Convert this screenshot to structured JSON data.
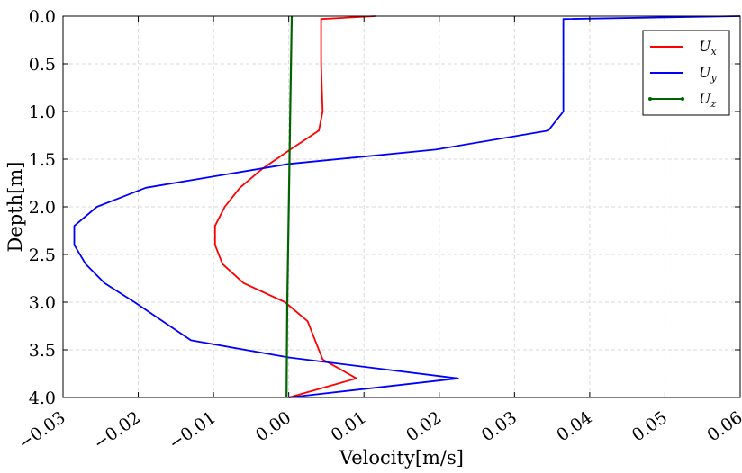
{
  "chart_data": {
    "type": "line",
    "xlabel": "Velocity[m/s]",
    "ylabel": "Depth[m]",
    "xlim": [
      -0.03,
      0.06
    ],
    "ylim": [
      4.0,
      0.0
    ],
    "y_inverted": true,
    "grid": true,
    "legend_position": "top-right",
    "x_ticks": [
      "−0.03",
      "−0.02",
      "−0.01",
      "0.00",
      "0.01",
      "0.02",
      "0.03",
      "0.04",
      "0.05",
      "0.06"
    ],
    "y_ticks": [
      "0.0",
      "0.5",
      "1.0",
      "1.5",
      "2.0",
      "2.5",
      "3.0",
      "3.5",
      "4.0"
    ],
    "series": [
      {
        "name": "U",
        "subscript": "x",
        "color": "#ff0000",
        "points": [
          [
            0.0115,
            0.0
          ],
          [
            0.0043,
            0.03
          ],
          [
            0.0043,
            0.5
          ],
          [
            0.0045,
            1.0
          ],
          [
            0.004,
            1.2
          ],
          [
            0.0002,
            1.4
          ],
          [
            -0.0035,
            1.6
          ],
          [
            -0.0065,
            1.8
          ],
          [
            -0.0085,
            2.0
          ],
          [
            -0.0098,
            2.2
          ],
          [
            -0.0098,
            2.4
          ],
          [
            -0.0088,
            2.6
          ],
          [
            -0.006,
            2.8
          ],
          [
            -0.0005,
            3.0
          ],
          [
            0.0025,
            3.2
          ],
          [
            0.0035,
            3.4
          ],
          [
            0.0045,
            3.6
          ],
          [
            0.009,
            3.8
          ],
          [
            0.0,
            4.0
          ]
        ]
      },
      {
        "name": "U",
        "subscript": "y",
        "color": "#0000ff",
        "points": [
          [
            0.06,
            0.0
          ],
          [
            0.0365,
            0.03
          ],
          [
            0.0365,
            0.5
          ],
          [
            0.0365,
            1.0
          ],
          [
            0.0345,
            1.2
          ],
          [
            0.0195,
            1.4
          ],
          [
            0.0,
            1.55
          ],
          [
            -0.019,
            1.8
          ],
          [
            -0.0255,
            2.0
          ],
          [
            -0.0285,
            2.2
          ],
          [
            -0.0285,
            2.4
          ],
          [
            -0.027,
            2.6
          ],
          [
            -0.0245,
            2.8
          ],
          [
            -0.0205,
            3.0
          ],
          [
            -0.013,
            3.4
          ],
          [
            0.0,
            3.58
          ],
          [
            0.0225,
            3.8
          ],
          [
            0.0,
            4.0
          ]
        ]
      },
      {
        "name": "U",
        "subscript": "z",
        "color": "#006400",
        "points": [
          [
            0.0004,
            0.0
          ],
          [
            0.0002,
            1.0
          ],
          [
            0.0,
            2.0
          ],
          [
            -0.0002,
            3.0
          ],
          [
            -0.0003,
            4.0
          ]
        ]
      }
    ]
  }
}
